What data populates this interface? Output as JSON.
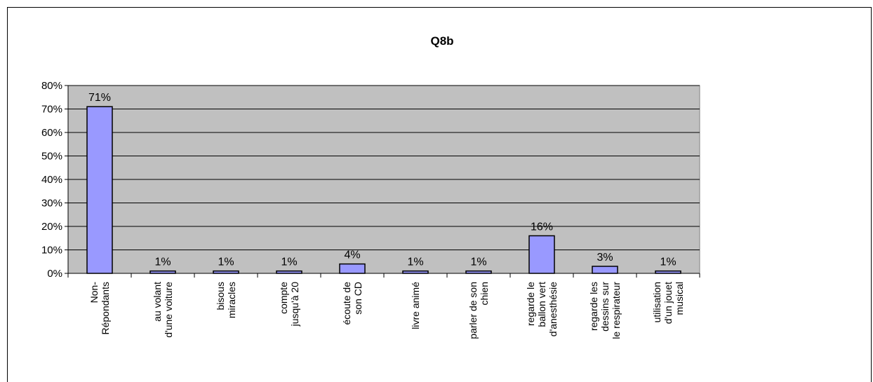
{
  "chart_data": {
    "type": "bar",
    "title": "Q8b",
    "xlabel": "",
    "ylabel": "",
    "ylim": [
      0,
      80
    ],
    "y_ticks": [
      "0%",
      "10%",
      "20%",
      "30%",
      "40%",
      "50%",
      "60%",
      "70%",
      "80%"
    ],
    "y_tick_values": [
      0,
      10,
      20,
      30,
      40,
      50,
      60,
      70,
      80
    ],
    "grid": true,
    "legend": "none",
    "categories": [
      [
        "Non-",
        "Répondants"
      ],
      [
        "au volant",
        "d'une voiture"
      ],
      [
        "bisous",
        "miracles"
      ],
      [
        "compte",
        "jusqu'à 20"
      ],
      [
        "écoute de",
        "son CD"
      ],
      [
        "livre animé"
      ],
      [
        "parler de son",
        "chien"
      ],
      [
        "regarde le",
        "ballon vert",
        "d'anesthésie"
      ],
      [
        "regarde les",
        "dessins sur",
        "le respirateur"
      ],
      [
        "utilisation",
        "d'un jouet",
        "musical"
      ]
    ],
    "values": [
      71,
      1,
      1,
      1,
      4,
      1,
      1,
      16,
      3,
      1
    ],
    "data_labels": [
      "71%",
      "1%",
      "1%",
      "1%",
      "4%",
      "1%",
      "1%",
      "16%",
      "3%",
      "1%"
    ],
    "colors": {
      "bar_fill": "#9999ff",
      "bar_stroke": "#000000",
      "plot_bg": "#c0c0c0",
      "grid": "#000000"
    }
  }
}
